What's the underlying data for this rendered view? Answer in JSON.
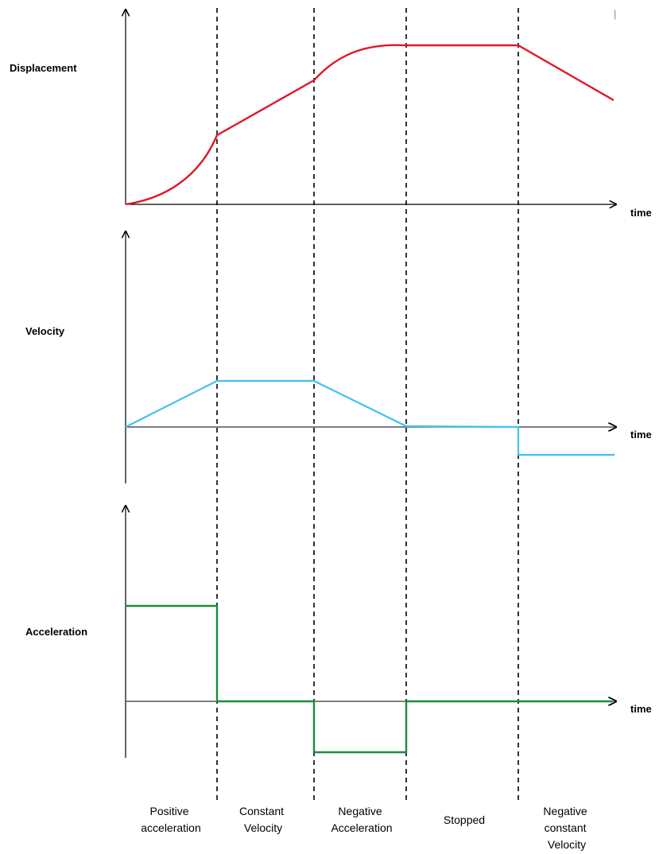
{
  "colors": {
    "displacement": "#e0162a",
    "velocity": "#3fc3f0",
    "acceleration": "#1a8c3c",
    "axes": "#000000"
  },
  "graphs": {
    "displacement": {
      "label": "Displacement",
      "time_label": "time"
    },
    "velocity": {
      "label": "Velocity",
      "time_label": "time"
    },
    "acceleration": {
      "label": "Acceleration",
      "time_label": "time"
    }
  },
  "phases": [
    {
      "lines": [
        "Positive",
        "acceleration"
      ]
    },
    {
      "lines": [
        "Constant",
        "Velocity"
      ]
    },
    {
      "lines": [
        "Negative",
        "Acceleration"
      ]
    },
    {
      "lines": [
        "Stopped"
      ]
    },
    {
      "lines": [
        "Negative",
        "constant",
        "Velocity"
      ]
    }
  ],
  "stray_mark": "|"
}
